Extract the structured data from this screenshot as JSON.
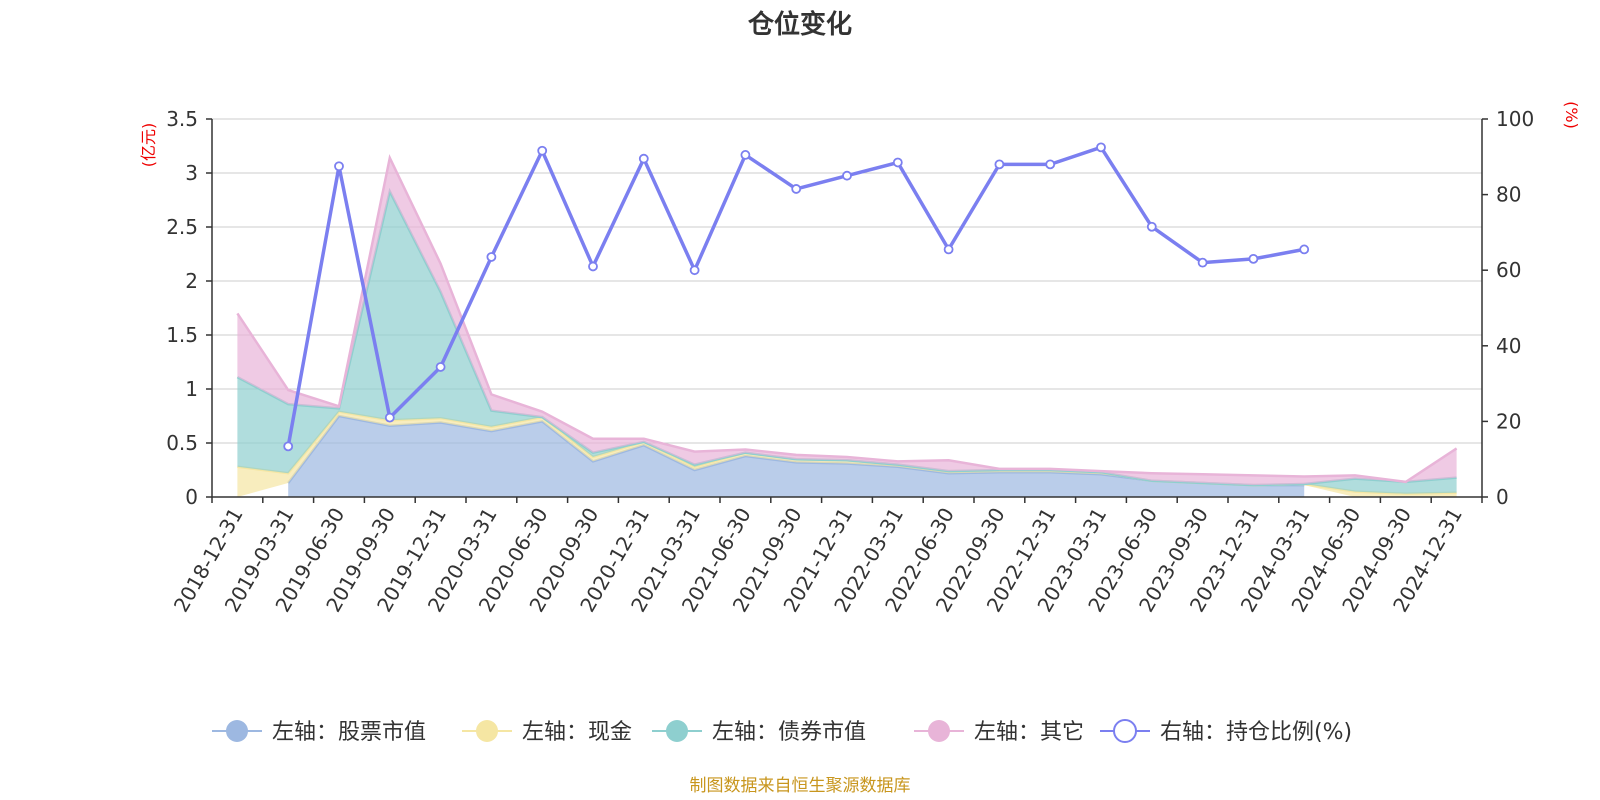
{
  "chart_data": {
    "type": "area",
    "title": "仓位变化",
    "left_unit": "(亿元)",
    "right_unit": "(%)",
    "left_ylim": [
      0,
      3.5
    ],
    "left_ticks": [
      "0",
      "0.5",
      "1",
      "1.5",
      "2",
      "2.5",
      "3",
      "3.5"
    ],
    "right_ylim": [
      0,
      100
    ],
    "right_ticks": [
      "0",
      "20",
      "40",
      "60",
      "80",
      "100"
    ],
    "categories": [
      "2018-12-31",
      "2019-03-31",
      "2019-06-30",
      "2019-09-30",
      "2019-12-31",
      "2020-03-31",
      "2020-06-30",
      "2020-09-30",
      "2020-12-31",
      "2021-03-31",
      "2021-06-30",
      "2021-09-30",
      "2021-12-31",
      "2022-03-31",
      "2022-06-30",
      "2022-09-30",
      "2022-12-31",
      "2023-03-31",
      "2023-06-30",
      "2023-09-30",
      "2023-12-31",
      "2024-03-31",
      "2024-06-30",
      "2024-09-30",
      "2024-12-31"
    ],
    "series": [
      {
        "name": "左轴：股票市值",
        "axis": "left",
        "color": "#9db8e1",
        "values": [
          null,
          0.13,
          0.75,
          0.66,
          0.69,
          0.61,
          0.7,
          0.33,
          0.48,
          0.25,
          0.38,
          0.32,
          0.31,
          0.28,
          0.22,
          0.23,
          0.23,
          0.21,
          0.15,
          0.13,
          0.11,
          0.11,
          null,
          null,
          null
        ]
      },
      {
        "name": "左轴：现金",
        "axis": "left",
        "color": "#f5e6a3",
        "values": [
          0.28,
          0.09,
          0.04,
          0.05,
          0.04,
          0.04,
          0.04,
          0.04,
          0.03,
          0.03,
          0.03,
          0.03,
          0.03,
          0.02,
          0.02,
          0.02,
          0.02,
          0.02,
          0.0,
          0.0,
          0.0,
          0.01,
          0.05,
          0.03,
          0.04
        ]
      },
      {
        "name": "左轴：债券市值",
        "axis": "left",
        "color": "#8ecfcf",
        "values": [
          0.83,
          0.64,
          0.03,
          2.12,
          1.17,
          0.15,
          0.0,
          0.04,
          0.0,
          0.02,
          0.0,
          0.0,
          0.0,
          0.0,
          0.0,
          0.0,
          0.0,
          0.0,
          0.0,
          0.0,
          0.0,
          0.0,
          0.12,
          0.11,
          0.14
        ]
      },
      {
        "name": "左轴：其它",
        "axis": "left",
        "color": "#e8b4d8",
        "values": [
          0.59,
          0.13,
          0.02,
          0.31,
          0.26,
          0.15,
          0.05,
          0.13,
          0.03,
          0.12,
          0.03,
          0.04,
          0.03,
          0.03,
          0.1,
          0.01,
          0.01,
          0.01,
          0.07,
          0.08,
          0.09,
          0.07,
          0.03,
          0.0,
          0.27
        ]
      },
      {
        "name": "右轴：持仓比例(%)",
        "axis": "right",
        "color": "#7b7ff0",
        "values": [
          null,
          13.4,
          87.5,
          21.0,
          34.4,
          63.5,
          91.6,
          61.0,
          89.5,
          60.0,
          90.5,
          81.5,
          85.0,
          88.5,
          65.5,
          88.0,
          88.0,
          92.5,
          71.5,
          62.0,
          63.0,
          65.5,
          null,
          null,
          null
        ]
      }
    ]
  },
  "source": "制图数据来自恒生聚源数据库"
}
